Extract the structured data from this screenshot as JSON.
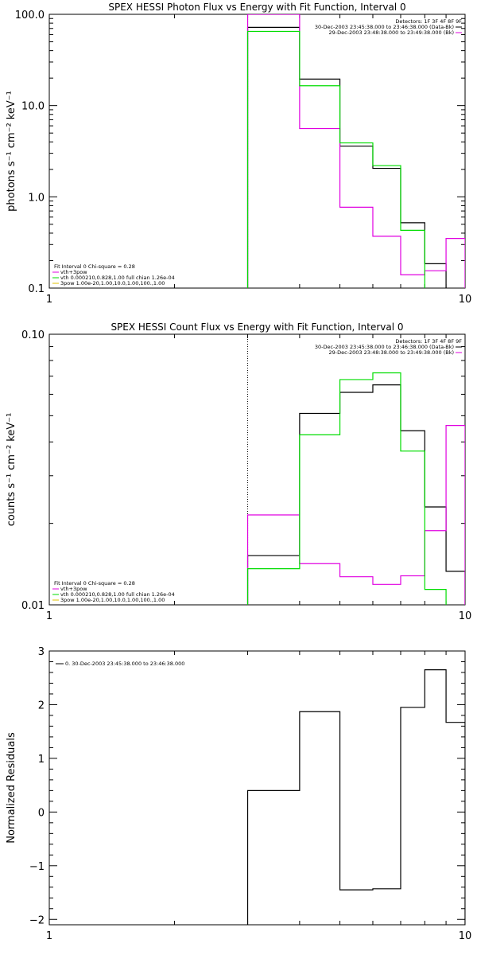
{
  "chart_data": [
    {
      "type": "line",
      "title": "SPEX HESSI Photon Flux vs Energy with Fit Function, Interval 0",
      "ylabel": "photons s⁻¹ cm⁻² keV⁻¹",
      "xlabel": "",
      "xscale": "log",
      "yscale": "log",
      "xlim": [
        1,
        10
      ],
      "ylim": [
        0.1,
        100
      ],
      "x_tick_labels": [
        "1",
        "10"
      ],
      "y_tick_labels": [
        "0.1",
        "1.0",
        "10.0",
        "100.0"
      ],
      "y_tick_values": [
        0.1,
        1,
        10,
        100
      ],
      "marker_x": 3,
      "legend_topright": [
        "Detectors: 1F 3F 4F 8F 9F",
        "30-Dec-2003 23:45:38.000 to 23:46:38.000 (Data-Bk)",
        "29-Dec-2003 23:48:38.000 to 23:49:38.000 (Bk)"
      ],
      "legend_bottomleft": [
        "Fit Interval 0   Chi-square = 0.28",
        "vth+3pow",
        "vth 0.000210,0.828,1.00  full chian 1.26e-04",
        "3pow 1.00e-20,1.00,10.0,1.00,100.,1.00"
      ],
      "series": [
        {
          "name": "30-Dec-2003 23:45:38.000 to 23:46:38.000 (Data-Bk)",
          "color": "#000000",
          "edges": [
            3,
            4,
            5,
            6,
            7,
            8,
            9,
            10
          ],
          "values": [
            72,
            19.5,
            3.6,
            2.05,
            0.52,
            0.185,
            0.098
          ]
        },
        {
          "name": "29-Dec-2003 23:48:38.000 to 23:49:38.000 (Bk)",
          "color": "#e000e0",
          "edges": [
            3,
            4,
            5,
            6,
            7,
            8,
            9,
            10
          ],
          "values": [
            100,
            5.6,
            0.77,
            0.37,
            0.14,
            0.155,
            0.35
          ]
        },
        {
          "name": "vth+3pow",
          "color": "#00dd00",
          "edges": [
            3,
            4,
            5,
            6,
            7,
            8
          ],
          "values": [
            65,
            16.5,
            3.9,
            2.2,
            0.43
          ]
        }
      ]
    },
    {
      "type": "line",
      "title": "SPEX HESSI Count Flux vs Energy with Fit Function, Interval 0",
      "ylabel": "counts s⁻¹ cm⁻² keV⁻¹",
      "xlabel": "",
      "xscale": "log",
      "yscale": "log",
      "xlim": [
        1,
        10
      ],
      "ylim": [
        0.01,
        0.1
      ],
      "x_tick_labels": [
        "1",
        "10"
      ],
      "y_tick_labels": [
        "0.01",
        "0.10"
      ],
      "y_tick_values": [
        0.01,
        0.1
      ],
      "marker_x": 3,
      "legend_topright": [
        "Detectors: 1F 3F 4F 8F 9F",
        "30-Dec-2003 23:45:38.000 to 23:46:38.000 (Data-Bk)",
        "29-Dec-2003 23:48:38.000 to 23:49:38.000 (Bk)"
      ],
      "legend_bottomleft": [
        "Fit Interval 0   Chi-square = 0.28",
        "vth+3pow",
        "vth 0.000210,0.828,1.00  full chian 1.26e-04",
        "3pow 1.00e-20,1.00,10.0,1.00,100.,1.00"
      ],
      "series": [
        {
          "name": "30-Dec-2003 23:45:38.000 to 23:46:38.000 (Data-Bk)",
          "color": "#000000",
          "edges": [
            3,
            4,
            5,
            6,
            7,
            8,
            9,
            10
          ],
          "values": [
            0.0152,
            0.051,
            0.061,
            0.065,
            0.044,
            0.023,
            0.0133
          ]
        },
        {
          "name": "29-Dec-2003 23:48:38.000 to 23:49:38.000 (Bk)",
          "color": "#e000e0",
          "edges": [
            3,
            4,
            5,
            6,
            7,
            8,
            9,
            10
          ],
          "values": [
            0.0215,
            0.0142,
            0.0127,
            0.0119,
            0.0128,
            0.0188,
            0.046
          ]
        },
        {
          "name": "vth+3pow",
          "color": "#00dd00",
          "edges": [
            3,
            4,
            5,
            6,
            7,
            8,
            9
          ],
          "values": [
            0.0136,
            0.0425,
            0.068,
            0.072,
            0.037,
            0.0114,
            0.0095
          ]
        }
      ]
    },
    {
      "type": "line",
      "title": "",
      "ylabel": "Normalized Residuals",
      "xlabel": "",
      "xscale": "log",
      "yscale": "linear",
      "xlim": [
        1,
        10
      ],
      "ylim": [
        -2.1,
        3
      ],
      "x_tick_labels": [
        "1",
        "10"
      ],
      "y_tick_labels": [
        "−2",
        "−1",
        "0",
        "1",
        "2",
        "3"
      ],
      "y_tick_values": [
        -2,
        -1,
        0,
        1,
        2,
        3
      ],
      "legend_topright": [],
      "legend_bottomleft": [],
      "legend_topleft": "0. 30-Dec-2003 23:45:38.000 to 23:46:38.000",
      "series": [
        {
          "name": "0. 30-Dec-2003 23:45:38.000 to 23:46:38.000",
          "color": "#000000",
          "edges": [
            3,
            4,
            5,
            6,
            7,
            8,
            9,
            10
          ],
          "values": [
            0.4,
            1.87,
            -1.45,
            -1.43,
            1.95,
            2.65,
            1.67
          ]
        }
      ]
    }
  ]
}
